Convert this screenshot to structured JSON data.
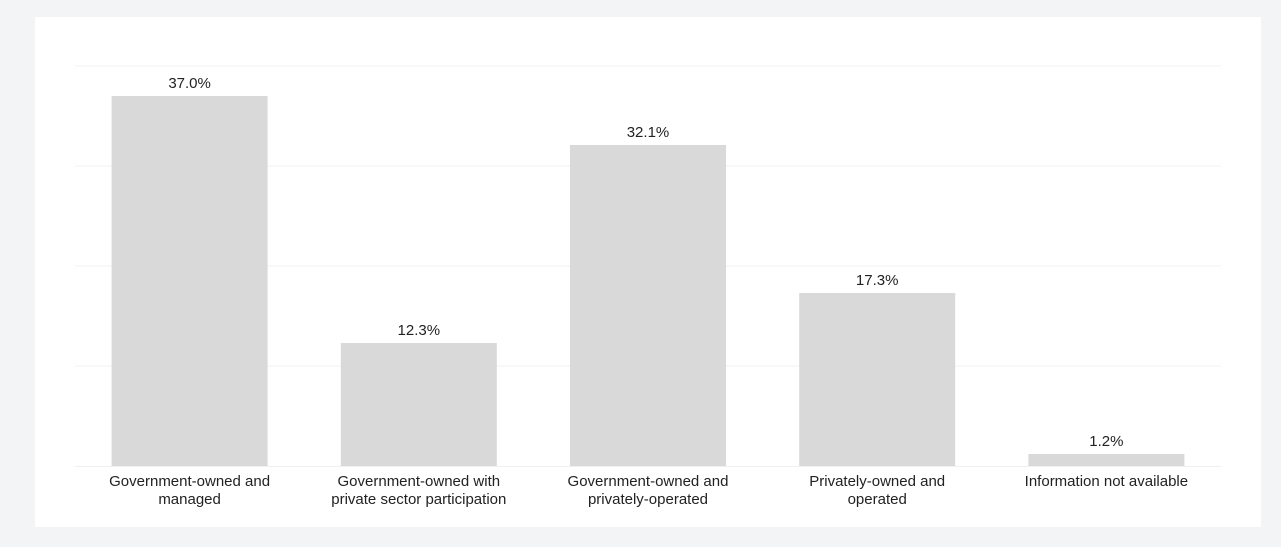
{
  "chart_data": {
    "type": "bar",
    "categories": [
      [
        "Government-owned and",
        "managed"
      ],
      [
        "Government-owned with",
        "private sector participation"
      ],
      [
        "Government-owned and",
        "privately-operated"
      ],
      [
        "Privately-owned and",
        "operated"
      ],
      [
        "Information not available"
      ]
    ],
    "values": [
      37.0,
      12.3,
      32.1,
      17.3,
      1.2
    ],
    "value_labels": [
      "37.0%",
      "12.3%",
      "32.1%",
      "17.3%",
      "1.2%"
    ],
    "unit": "%",
    "ylim": [
      0,
      40
    ],
    "gridline_values": [
      10,
      20,
      30,
      40
    ],
    "grid": true,
    "axes_visible": false,
    "legend": "none",
    "colors": {
      "bar": "#d9d9d9",
      "text": "#222222",
      "grid": "#f0f0f0",
      "background": "#ffffff",
      "frame": "#f3f4f5"
    }
  }
}
